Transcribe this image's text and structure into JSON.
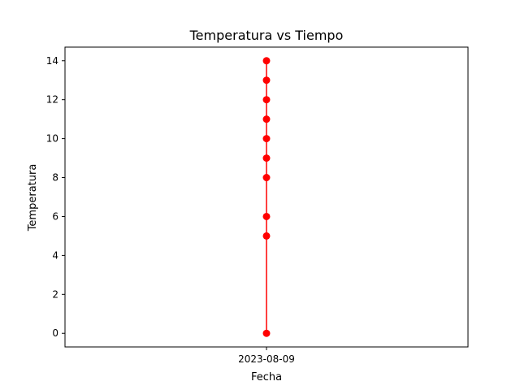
{
  "chart_data": {
    "type": "line",
    "title": "Temperatura vs Tiempo",
    "xlabel": "Fecha",
    "ylabel": "Temperatura",
    "x_categories": [
      "2023-08-09"
    ],
    "yticks": [
      0,
      2,
      4,
      6,
      8,
      10,
      12,
      14
    ],
    "ylim": [
      -0.7,
      14.7
    ],
    "grid": false,
    "series": [
      {
        "color": "#ff0000",
        "marker": "circle",
        "points": [
          {
            "x": "2023-08-09",
            "y": 0
          },
          {
            "x": "2023-08-09",
            "y": 5
          },
          {
            "x": "2023-08-09",
            "y": 6
          },
          {
            "x": "2023-08-09",
            "y": 8
          },
          {
            "x": "2023-08-09",
            "y": 9
          },
          {
            "x": "2023-08-09",
            "y": 10
          },
          {
            "x": "2023-08-09",
            "y": 11
          },
          {
            "x": "2023-08-09",
            "y": 12
          },
          {
            "x": "2023-08-09",
            "y": 13
          },
          {
            "x": "2023-08-09",
            "y": 14
          }
        ]
      }
    ]
  }
}
